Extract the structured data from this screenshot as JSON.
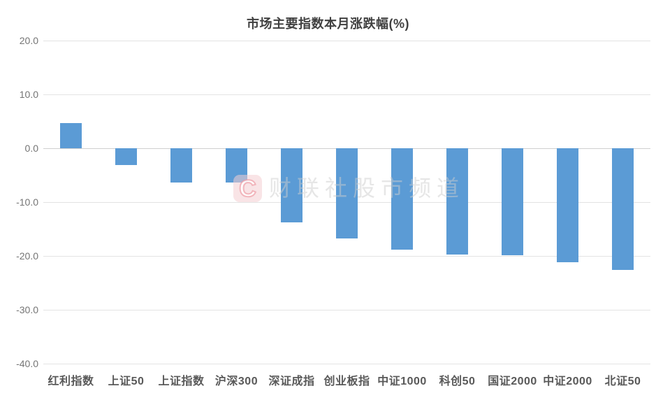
{
  "chart_data": {
    "type": "bar",
    "title": "市场主要指数本月涨跌幅(%)",
    "categories": [
      "红利指数",
      "上证50",
      "上证指数",
      "沪深300",
      "深证成指",
      "创业板指",
      "中证1000",
      "科创50",
      "国证2000",
      "中证2000",
      "北证50"
    ],
    "values": [
      4.7,
      -3.1,
      -6.4,
      -6.3,
      -13.8,
      -16.8,
      -18.8,
      -19.8,
      -19.9,
      -21.2,
      -22.6
    ],
    "xlabel": "",
    "ylabel": "",
    "ylim": [
      -40,
      20
    ],
    "yticks": [
      20,
      10,
      0,
      -10,
      -20,
      -30,
      -40
    ],
    "ytick_labels": [
      "20.0",
      "10.0",
      "0.0",
      "-10.0",
      "-20.0",
      "-30.0",
      "-40.0"
    ],
    "grid": true,
    "legend": false,
    "bar_color": "#5B9BD5"
  },
  "watermark": {
    "logo_letter": "C",
    "text": "财联社股市频道"
  },
  "colors": {
    "bar": "#5B9BD5",
    "title": "#404040",
    "ytick_label": "#757575",
    "xtick_label": "#595959",
    "gridline": "#e3e3e3",
    "zero_line": "#cfcfcf",
    "watermark_text": "#cdcdcd",
    "watermark_logo_bg": "#f4cdd2",
    "watermark_logo_stroke": "#ec96a0"
  }
}
